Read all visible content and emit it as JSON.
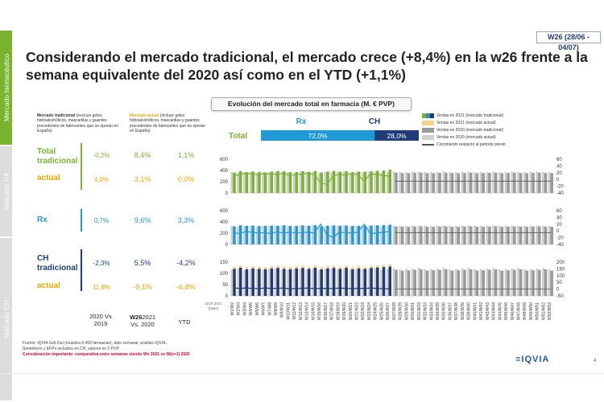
{
  "sidebar": {
    "active": "Mercado farmacéutico",
    "rx": "Mercado RX",
    "ch": "Mercado CH"
  },
  "week_badge": "W26 (28/06 - 04/07)",
  "headline": "Considerando el mercado tradicional, el mercado crece (+8,4%) en la w26 frente a la semana equivalente del 2020 así como en el YTD (+1,1%)",
  "notes": {
    "trad_bold": "Mercado tradicional",
    "trad_rest": " (excluye geles hidroalcohólicos, mascarillas y guantes procedentes de fabricantes que no operan en España)",
    "act_bold": "Mercado actual",
    "act_rest": " (incluye geles hidroalcohólicos, mascarillas y guantes procedentes de fabricantes que no operan en España)"
  },
  "rows": {
    "total_label": "Total tradicional",
    "total_actual_label": "actual",
    "rx_label": "Rx",
    "ch_label": "CH tradicional",
    "ch_actual_label": "actual",
    "total": [
      "-0,2%",
      "8,4%",
      "1,1%"
    ],
    "total_actual": [
      "4,0%",
      "3,1%",
      "0,0%"
    ],
    "rx": [
      "0,7%",
      "9,6%",
      "3,3%"
    ],
    "ch": [
      "-2,3%",
      "5,5%",
      "-4,2%"
    ],
    "ch_actual": [
      "11,8%",
      "-9,1%",
      "-6,8%"
    ]
  },
  "col_headers": {
    "c1": "2020 Vs 2019",
    "c2a": "W26",
    "c2b": "2021 Vs. 2020",
    "c3": "YTD"
  },
  "year_note": "2019 2021 (base)",
  "chart_title": "Evolución del mercado total en farmacia (M. € PVP)",
  "split": {
    "rx_label": "Rx",
    "ch_label": "CH",
    "total_label": "Total",
    "rx_pct": "72,0%",
    "ch_pct": "28,0%",
    "rx_share": 0.72
  },
  "legend": [
    {
      "label": "Ventas en 2021 (mercado tradicional)",
      "color": "#2a8fd0"
    },
    {
      "label": "Ventas en 2021 (mercado actual)",
      "color": "#f6d28c"
    },
    {
      "label": "Ventas en 2020 (mercado tradicional)",
      "color": "#9a9a9a"
    },
    {
      "label": "Ventas en 2020 (mercado actual)",
      "color": "#cfcfcf"
    },
    {
      "label": "Crecimiento respecto al periodo previo",
      "color": "#555555"
    }
  ],
  "colors": {
    "total": "#7ab32e",
    "rx": "#1e9ad6",
    "ch": "#1f3c78",
    "actual": "#f0a500",
    "gray": "#9a9a9a",
    "lightgray": "#cfcfcf",
    "line": "#1e9ad6"
  },
  "chart_data": [
    {
      "type": "bar",
      "name": "Total",
      "ylim": [
        0,
        600
      ],
      "y2lim": [
        -40,
        60
      ],
      "yticks": [
        "0",
        "200",
        "400",
        "600"
      ],
      "y2ticks": [
        "-40",
        "-20",
        "0",
        "20",
        "40",
        "60"
      ],
      "values_2021": [
        360,
        390,
        370,
        380,
        375,
        365,
        380,
        390,
        385,
        370,
        372,
        388,
        376,
        390,
        365,
        380,
        392,
        378,
        388,
        370,
        380,
        378,
        386,
        392,
        402,
        415
      ],
      "values_2020": [
        370,
        360,
        372,
        380,
        360,
        370,
        365,
        378,
        372,
        370,
        360,
        378,
        372,
        380,
        362,
        372,
        378,
        372,
        380,
        360,
        372,
        370,
        378,
        380,
        362,
        372,
        380,
        372,
        370,
        378,
        380,
        372,
        370,
        375,
        380,
        372,
        370,
        375,
        380,
        370,
        372,
        375,
        380,
        370,
        375,
        378,
        372,
        370,
        375,
        380,
        372,
        370
      ],
      "growth": [
        10,
        15,
        18,
        16,
        14,
        18,
        16,
        15,
        18,
        12,
        14,
        16,
        18,
        14,
        -10,
        -15,
        10,
        16,
        12,
        18,
        14,
        -5,
        16,
        15,
        12,
        10
      ]
    },
    {
      "type": "bar",
      "name": "Rx",
      "ylim": [
        0,
        600
      ],
      "y2lim": [
        -40,
        60
      ],
      "yticks": [
        "0",
        "200",
        "400",
        "600"
      ],
      "y2ticks": [
        "-40",
        "-20",
        "0",
        "20",
        "40",
        "60"
      ],
      "values_2021": [
        320,
        340,
        330,
        335,
        325,
        330,
        335,
        330,
        340,
        328,
        330,
        338,
        330,
        340,
        320,
        330,
        338,
        332,
        336,
        330,
        332,
        330,
        336,
        340,
        345,
        350
      ],
      "values_2020": [
        330,
        320,
        332,
        335,
        322,
        330,
        325,
        336,
        332,
        330,
        322,
        336,
        332,
        338,
        322,
        332,
        336,
        332,
        338,
        322,
        332,
        330,
        336,
        338,
        322,
        332,
        336,
        332,
        330,
        336,
        338,
        332,
        330,
        334,
        338,
        332,
        330,
        334,
        338,
        330,
        332,
        334,
        338,
        330,
        334,
        336,
        332,
        330,
        334,
        338,
        332,
        330
      ],
      "growth": [
        -5,
        -8,
        -2,
        -4,
        -6,
        -5,
        -8,
        -3,
        -6,
        -4,
        -5,
        -5,
        -4,
        -6,
        20,
        -10,
        -20,
        -4,
        -5,
        -6,
        -4,
        20,
        -8,
        -6,
        -4,
        -2
      ]
    },
    {
      "type": "bar",
      "name": "CH",
      "ylim": [
        0,
        150
      ],
      "y2lim": [
        -50,
        200
      ],
      "yticks": [
        "0",
        "50",
        "100",
        "150"
      ],
      "y2ticks": [
        "-50",
        "0",
        "50",
        "100",
        "150",
        "200"
      ],
      "values_2021": [
        120,
        125,
        118,
        122,
        120,
        118,
        122,
        124,
        120,
        118,
        122,
        124,
        120,
        125,
        118,
        122,
        124,
        120,
        125,
        118,
        122,
        120,
        124,
        126,
        128,
        130
      ],
      "values_2021_actual": [
        130,
        135,
        128,
        132,
        130,
        128,
        132,
        134,
        130,
        128,
        132,
        134,
        130,
        135,
        128,
        132,
        134,
        130,
        135,
        128,
        132,
        130,
        134,
        136,
        138,
        140
      ],
      "values_2020": [
        118,
        122,
        115,
        120,
        118,
        116,
        120,
        122,
        118,
        116,
        120,
        122,
        118,
        122,
        116,
        120,
        122,
        118,
        122,
        116,
        120,
        118,
        122,
        124,
        116,
        120,
        122,
        118,
        120,
        122,
        124,
        118,
        120,
        122,
        124,
        118,
        120,
        122,
        124,
        118,
        120,
        122,
        124,
        118,
        120,
        122,
        124,
        118,
        120,
        122,
        124,
        118
      ],
      "growth": [
        10,
        5,
        8,
        6,
        4,
        8,
        6,
        5,
        8,
        2,
        4,
        6,
        8,
        4,
        5,
        6,
        4,
        8,
        6,
        4,
        6,
        5,
        8,
        6,
        4,
        2
      ]
    }
  ],
  "weeks": [
    "W1/W2",
    "W2/W3",
    "W3/W4",
    "W4/W5",
    "W5/W6",
    "W6/W7",
    "W7/W8",
    "W8/W9",
    "W9/W10",
    "W10/W11",
    "W11/W12",
    "W12/W13",
    "W13/W14",
    "W14/W15",
    "W15/W16",
    "W16/W17",
    "W17/W18",
    "W18/W19",
    "W19/W20",
    "W20/W21",
    "W21/W22",
    "W22/W23",
    "W23/W24",
    "W24/W25",
    "W25/W26",
    "W26/W27",
    "W27/W28",
    "W28/W29",
    "W29/W30",
    "W30/W31",
    "W31/W32",
    "W32/W33",
    "W33/W34",
    "W34/W35",
    "W35/W36",
    "W36/W37",
    "W37/W38",
    "W38/W39",
    "W39/W40",
    "W40/W41",
    "W41/W42",
    "W42/W43",
    "W43/W44",
    "W44/W45",
    "W45/W46",
    "W46/W47",
    "W47/W48",
    "W48/W49",
    "W49/W50",
    "W50/W51",
    "W51/W52",
    "W52/W53"
  ],
  "footer": {
    "line1": "Fuente: IQVIA Sell-Out (muestra 6.400 farmacias), dato semanal, análisis IQVIA.",
    "line2": "Semiéticos y EFPs incluidos en CH, valores en € PVP.",
    "line3": "Consideración importante: comparativa entre semanas siendo Wn 2021 vs W(n+1) 2020"
  },
  "logo": "≡IQVIA",
  "page_number": "4"
}
